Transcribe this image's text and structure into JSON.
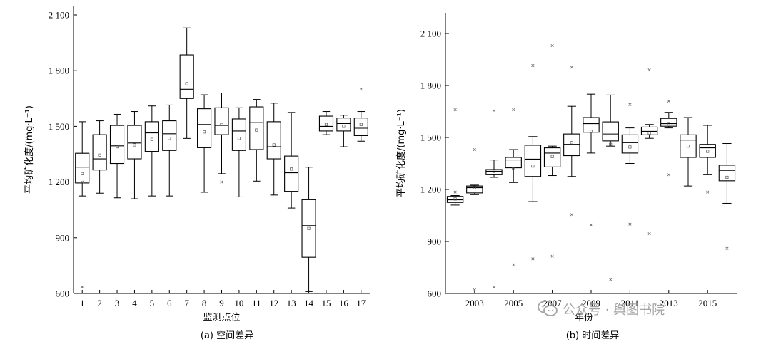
{
  "chart_data": [
    {
      "type": "box",
      "caption": "(a) 空间差异",
      "xlabel": "监测点位",
      "ylabel": "平均矿化度/(mg·L⁻¹)",
      "ylim": [
        600,
        2100
      ],
      "yticks": [
        600,
        900,
        1200,
        1500,
        1800,
        2100
      ],
      "ytick_labels": [
        "600",
        "900",
        "1 200",
        "1 500",
        "1 800",
        "2 100"
      ],
      "categories": [
        "1",
        "2",
        "3",
        "4",
        "5",
        "6",
        "7",
        "8",
        "9",
        "10",
        "11",
        "12",
        "13",
        "14",
        "15",
        "16",
        "17"
      ],
      "boxes": [
        {
          "label": "1",
          "whisker_low": 1125,
          "q1": 1195,
          "median": 1280,
          "q3": 1355,
          "whisker_high": 1525,
          "mean": 1245,
          "outliers": [
            1200,
            635
          ]
        },
        {
          "label": "2",
          "whisker_low": 1140,
          "q1": 1265,
          "median": 1325,
          "q3": 1455,
          "whisker_high": 1530,
          "mean": 1345,
          "outliers": []
        },
        {
          "label": "3",
          "whisker_low": 1115,
          "q1": 1300,
          "median": 1395,
          "q3": 1505,
          "whisker_high": 1565,
          "mean": 1390,
          "outliers": []
        },
        {
          "label": "4",
          "whisker_low": 1110,
          "q1": 1325,
          "median": 1410,
          "q3": 1505,
          "whisker_high": 1580,
          "mean": 1400,
          "outliers": []
        },
        {
          "label": "5",
          "whisker_low": 1125,
          "q1": 1365,
          "median": 1465,
          "q3": 1525,
          "whisker_high": 1610,
          "mean": 1430,
          "outliers": []
        },
        {
          "label": "6",
          "whisker_low": 1125,
          "q1": 1370,
          "median": 1460,
          "q3": 1530,
          "whisker_high": 1615,
          "mean": 1435,
          "outliers": []
        },
        {
          "label": "7",
          "whisker_low": 1435,
          "q1": 1650,
          "median": 1700,
          "q3": 1885,
          "whisker_high": 2030,
          "mean": 1730,
          "outliers": []
        },
        {
          "label": "8",
          "whisker_low": 1145,
          "q1": 1385,
          "median": 1510,
          "q3": 1595,
          "whisker_high": 1670,
          "mean": 1470,
          "outliers": []
        },
        {
          "label": "9",
          "whisker_low": 1245,
          "q1": 1455,
          "median": 1505,
          "q3": 1600,
          "whisker_high": 1680,
          "mean": 1510,
          "outliers": [
            1200
          ]
        },
        {
          "label": "10",
          "whisker_low": 1120,
          "q1": 1370,
          "median": 1475,
          "q3": 1540,
          "whisker_high": 1600,
          "mean": 1435,
          "outliers": []
        },
        {
          "label": "11",
          "whisker_low": 1205,
          "q1": 1375,
          "median": 1520,
          "q3": 1605,
          "whisker_high": 1645,
          "mean": 1480,
          "outliers": []
        },
        {
          "label": "12",
          "whisker_low": 1130,
          "q1": 1325,
          "median": 1390,
          "q3": 1525,
          "whisker_high": 1625,
          "mean": 1400,
          "outliers": []
        },
        {
          "label": "13",
          "whisker_low": 1060,
          "q1": 1150,
          "median": 1250,
          "q3": 1340,
          "whisker_high": 1575,
          "mean": 1270,
          "outliers": []
        },
        {
          "label": "14",
          "whisker_low": 610,
          "q1": 795,
          "median": 965,
          "q3": 1105,
          "whisker_high": 1280,
          "mean": 950,
          "outliers": []
        },
        {
          "label": "15",
          "whisker_low": 1455,
          "q1": 1475,
          "median": 1500,
          "q3": 1555,
          "whisker_high": 1580,
          "mean": 1510,
          "outliers": []
        },
        {
          "label": "16",
          "whisker_low": 1390,
          "q1": 1475,
          "median": 1515,
          "q3": 1545,
          "whisker_high": 1560,
          "mean": 1500,
          "outliers": []
        },
        {
          "label": "17",
          "whisker_low": 1420,
          "q1": 1450,
          "median": 1490,
          "q3": 1545,
          "whisker_high": 1580,
          "mean": 1510,
          "outliers": [
            1700
          ]
        }
      ]
    },
    {
      "type": "box",
      "caption": "(b) 时间差异",
      "xlabel": "年份",
      "ylabel": "平均矿化度/(mg·L⁻¹)",
      "ylim": [
        600,
        2200
      ],
      "yticks": [
        600,
        900,
        1200,
        1500,
        1800,
        2100
      ],
      "ytick_labels": [
        "600",
        "900",
        "1 200",
        "1 500",
        "1 800",
        "2 100"
      ],
      "x_tick_labels": [
        "2003",
        "2005",
        "2007",
        "2009",
        "2011",
        "2013",
        "2015"
      ],
      "categories": [
        "2002",
        "2003",
        "2004",
        "2005",
        "2006",
        "2007",
        "2008",
        "2009",
        "2010",
        "2011",
        "2012",
        "2013",
        "2014",
        "2015",
        "2016"
      ],
      "boxes": [
        {
          "label": "2002",
          "whisker_low": 1110,
          "q1": 1125,
          "median": 1140,
          "q3": 1160,
          "whisker_high": 1165,
          "mean": 1145,
          "outliers": [
            1660,
            1185
          ]
        },
        {
          "label": "2003",
          "whisker_low": 1170,
          "q1": 1180,
          "median": 1210,
          "q3": 1220,
          "whisker_high": 1225,
          "mean": 1210,
          "outliers": [
            1430,
            620
          ]
        },
        {
          "label": "2004",
          "whisker_low": 1270,
          "q1": 1285,
          "median": 1305,
          "q3": 1315,
          "whisker_high": 1370,
          "mean": 1305,
          "outliers": [
            1655,
            635
          ]
        },
        {
          "label": "2005",
          "whisker_low": 1240,
          "q1": 1325,
          "median": 1370,
          "q3": 1385,
          "whisker_high": 1430,
          "mean": 1320,
          "outliers": [
            1660,
            765
          ]
        },
        {
          "label": "2006",
          "whisker_low": 1130,
          "q1": 1275,
          "median": 1375,
          "q3": 1455,
          "whisker_high": 1505,
          "mean": 1335,
          "outliers": [
            1915,
            800
          ]
        },
        {
          "label": "2007",
          "whisker_low": 1280,
          "q1": 1330,
          "median": 1410,
          "q3": 1440,
          "whisker_high": 1450,
          "mean": 1390,
          "outliers": [
            2030,
            815
          ]
        },
        {
          "label": "2008",
          "whisker_low": 1275,
          "q1": 1395,
          "median": 1460,
          "q3": 1520,
          "whisker_high": 1680,
          "mean": 1470,
          "outliers": [
            1905,
            1055
          ]
        },
        {
          "label": "2009",
          "whisker_low": 1410,
          "q1": 1530,
          "median": 1580,
          "q3": 1615,
          "whisker_high": 1750,
          "mean": 1535,
          "outliers": [
            995
          ]
        },
        {
          "label": "2010",
          "whisker_low": 1450,
          "q1": 1480,
          "median": 1520,
          "q3": 1590,
          "whisker_high": 1745,
          "mean": 1460,
          "outliers": [
            680
          ]
        },
        {
          "label": "2011",
          "whisker_low": 1350,
          "q1": 1410,
          "median": 1470,
          "q3": 1515,
          "whisker_high": 1555,
          "mean": 1445,
          "outliers": [
            1690,
            1000
          ]
        },
        {
          "label": "2012",
          "whisker_low": 1495,
          "q1": 1515,
          "median": 1535,
          "q3": 1560,
          "whisker_high": 1575,
          "mean": 1525,
          "outliers": [
            1890,
            945
          ]
        },
        {
          "label": "2013",
          "whisker_low": 1555,
          "q1": 1565,
          "median": 1580,
          "q3": 1610,
          "whisker_high": 1645,
          "mean": 1580,
          "outliers": [
            1710,
            1285
          ]
        },
        {
          "label": "2014",
          "whisker_low": 1220,
          "q1": 1385,
          "median": 1485,
          "q3": 1515,
          "whisker_high": 1615,
          "mean": 1450,
          "outliers": []
        },
        {
          "label": "2015",
          "whisker_low": 1285,
          "q1": 1385,
          "median": 1440,
          "q3": 1460,
          "whisker_high": 1570,
          "mean": 1420,
          "outliers": [
            1185
          ]
        },
        {
          "label": "2016",
          "whisker_low": 1120,
          "q1": 1250,
          "median": 1310,
          "q3": 1340,
          "whisker_high": 1465,
          "mean": 1270,
          "outliers": [
            860
          ]
        }
      ]
    }
  ],
  "watermark": {
    "text": "公众号 · 舆图书院",
    "icon": "wechat-icon"
  }
}
